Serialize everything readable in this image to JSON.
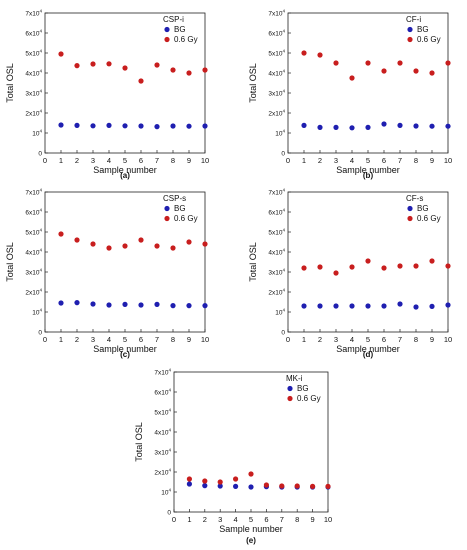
{
  "colors": {
    "bg": "#1f1fb0",
    "dose": "#c81e1e",
    "axis": "#222222"
  },
  "chart_data": [
    {
      "type": "scatter",
      "panel_label": "(a)",
      "sample_label": "CSP-i",
      "xlabel": "Sample number",
      "ylabel": "Total OSL",
      "xlim": [
        0,
        10
      ],
      "ylim": [
        0,
        70000
      ],
      "x_ticks": [
        "0",
        "1",
        "2",
        "3",
        "4",
        "5",
        "6",
        "7",
        "8",
        "9",
        "10"
      ],
      "y_ticks": [
        {
          "mant": "0",
          "exp": ""
        },
        {
          "mant": "10",
          "exp": "4"
        },
        {
          "mant": "2x10",
          "exp": "4"
        },
        {
          "mant": "3x10",
          "exp": "4"
        },
        {
          "mant": "4x10",
          "exp": "4"
        },
        {
          "mant": "5x10",
          "exp": "4"
        },
        {
          "mant": "6x10",
          "exp": "4"
        },
        {
          "mant": "7x10",
          "exp": "4"
        }
      ],
      "x": [
        1,
        2,
        3,
        4,
        5,
        6,
        7,
        8,
        9,
        10
      ],
      "series": [
        {
          "name": "BG",
          "color": "#1f1fb0",
          "values": [
            14000,
            13800,
            13600,
            13800,
            13600,
            13500,
            13200,
            13500,
            13400,
            13500
          ]
        },
        {
          "name": "0.6 Gy",
          "color": "#c81e1e",
          "values": [
            49500,
            43700,
            44500,
            44600,
            42500,
            36000,
            44000,
            41500,
            40000,
            41500
          ]
        }
      ]
    },
    {
      "type": "scatter",
      "panel_label": "(b)",
      "sample_label": "CF-i",
      "xlabel": "Sample number",
      "ylabel": "Total OSL",
      "xlim": [
        0,
        10
      ],
      "ylim": [
        0,
        70000
      ],
      "x_ticks": [
        "0",
        "1",
        "2",
        "3",
        "4",
        "5",
        "6",
        "7",
        "8",
        "9",
        "10"
      ],
      "y_ticks": [
        {
          "mant": "0",
          "exp": ""
        },
        {
          "mant": "10",
          "exp": "4"
        },
        {
          "mant": "2x10",
          "exp": "4"
        },
        {
          "mant": "3x10",
          "exp": "4"
        },
        {
          "mant": "4x10",
          "exp": "4"
        },
        {
          "mant": "5x10",
          "exp": "4"
        },
        {
          "mant": "6x10",
          "exp": "4"
        },
        {
          "mant": "7x10",
          "exp": "4"
        }
      ],
      "x": [
        1,
        2,
        3,
        4,
        5,
        6,
        7,
        8,
        9,
        10
      ],
      "series": [
        {
          "name": "BG",
          "color": "#1f1fb0",
          "values": [
            13800,
            12800,
            12800,
            12600,
            12800,
            14500,
            13800,
            13500,
            13400,
            13400
          ]
        },
        {
          "name": "0.6 Gy",
          "color": "#c81e1e",
          "values": [
            50000,
            49000,
            45000,
            37500,
            45000,
            41000,
            45000,
            41000,
            40000,
            45000
          ]
        }
      ]
    },
    {
      "type": "scatter",
      "panel_label": "(c)",
      "sample_label": "CSP-s",
      "xlabel": "Sample number",
      "ylabel": "Total OSL",
      "xlim": [
        0,
        10
      ],
      "ylim": [
        0,
        70000
      ],
      "x_ticks": [
        "0",
        "1",
        "2",
        "3",
        "4",
        "5",
        "6",
        "7",
        "8",
        "9",
        "10"
      ],
      "y_ticks": [
        {
          "mant": "0",
          "exp": ""
        },
        {
          "mant": "10",
          "exp": "4"
        },
        {
          "mant": "2x10",
          "exp": "4"
        },
        {
          "mant": "3x10",
          "exp": "4"
        },
        {
          "mant": "4x10",
          "exp": "4"
        },
        {
          "mant": "5x10",
          "exp": "4"
        },
        {
          "mant": "6x10",
          "exp": "4"
        },
        {
          "mant": "7x10",
          "exp": "4"
        }
      ],
      "x": [
        1,
        2,
        3,
        4,
        5,
        6,
        7,
        8,
        9,
        10
      ],
      "series": [
        {
          "name": "BG",
          "color": "#1f1fb0",
          "values": [
            14500,
            14700,
            14000,
            13500,
            13800,
            13500,
            13800,
            13200,
            13200,
            13200
          ]
        },
        {
          "name": "0.6 Gy",
          "color": "#c81e1e",
          "values": [
            49000,
            46000,
            44000,
            42000,
            43000,
            46000,
            43000,
            42000,
            45000,
            44000
          ]
        }
      ]
    },
    {
      "type": "scatter",
      "panel_label": "(d)",
      "sample_label": "CF-s",
      "xlabel": "Sample number",
      "ylabel": "Total OSL",
      "xlim": [
        0,
        10
      ],
      "ylim": [
        0,
        70000
      ],
      "x_ticks": [
        "0",
        "1",
        "2",
        "3",
        "4",
        "5",
        "6",
        "7",
        "8",
        "9",
        "10"
      ],
      "y_ticks": [
        {
          "mant": "0",
          "exp": ""
        },
        {
          "mant": "10",
          "exp": "4"
        },
        {
          "mant": "2x10",
          "exp": "4"
        },
        {
          "mant": "3x10",
          "exp": "4"
        },
        {
          "mant": "4x10",
          "exp": "4"
        },
        {
          "mant": "5x10",
          "exp": "4"
        },
        {
          "mant": "6x10",
          "exp": "4"
        },
        {
          "mant": "7x10",
          "exp": "4"
        }
      ],
      "x": [
        1,
        2,
        3,
        4,
        5,
        6,
        7,
        8,
        9,
        10
      ],
      "series": [
        {
          "name": "BG",
          "color": "#1f1fb0",
          "values": [
            13000,
            13000,
            13000,
            13000,
            13000,
            13000,
            14000,
            12500,
            12800,
            13500
          ]
        },
        {
          "name": "0.6 Gy",
          "color": "#c81e1e",
          "values": [
            32000,
            32500,
            29500,
            32500,
            35500,
            32000,
            33000,
            33000,
            35500,
            33000
          ]
        }
      ]
    },
    {
      "type": "scatter",
      "panel_label": "(e)",
      "sample_label": "MK-i",
      "xlabel": "Sample number",
      "ylabel": "Total OSL",
      "xlim": [
        0,
        10
      ],
      "ylim": [
        0,
        70000
      ],
      "x_ticks": [
        "0",
        "1",
        "2",
        "3",
        "4",
        "5",
        "6",
        "7",
        "8",
        "9",
        "10"
      ],
      "y_ticks": [
        {
          "mant": "0",
          "exp": ""
        },
        {
          "mant": "10",
          "exp": "4"
        },
        {
          "mant": "2x10",
          "exp": "4"
        },
        {
          "mant": "3x10",
          "exp": "4"
        },
        {
          "mant": "4x10",
          "exp": "4"
        },
        {
          "mant": "5x10",
          "exp": "4"
        },
        {
          "mant": "6x10",
          "exp": "4"
        },
        {
          "mant": "7x10",
          "exp": "4"
        }
      ],
      "x": [
        1,
        2,
        3,
        4,
        5,
        6,
        7,
        8,
        9,
        10
      ],
      "series": [
        {
          "name": "BG",
          "color": "#1f1fb0",
          "values": [
            14000,
            13200,
            13000,
            12800,
            12500,
            12700,
            12500,
            12500,
            12500,
            12500
          ]
        },
        {
          "name": "0.6 Gy",
          "color": "#c81e1e",
          "values": [
            16500,
            15500,
            15000,
            16500,
            19000,
            13500,
            13000,
            13000,
            12800,
            12800
          ]
        }
      ]
    }
  ]
}
